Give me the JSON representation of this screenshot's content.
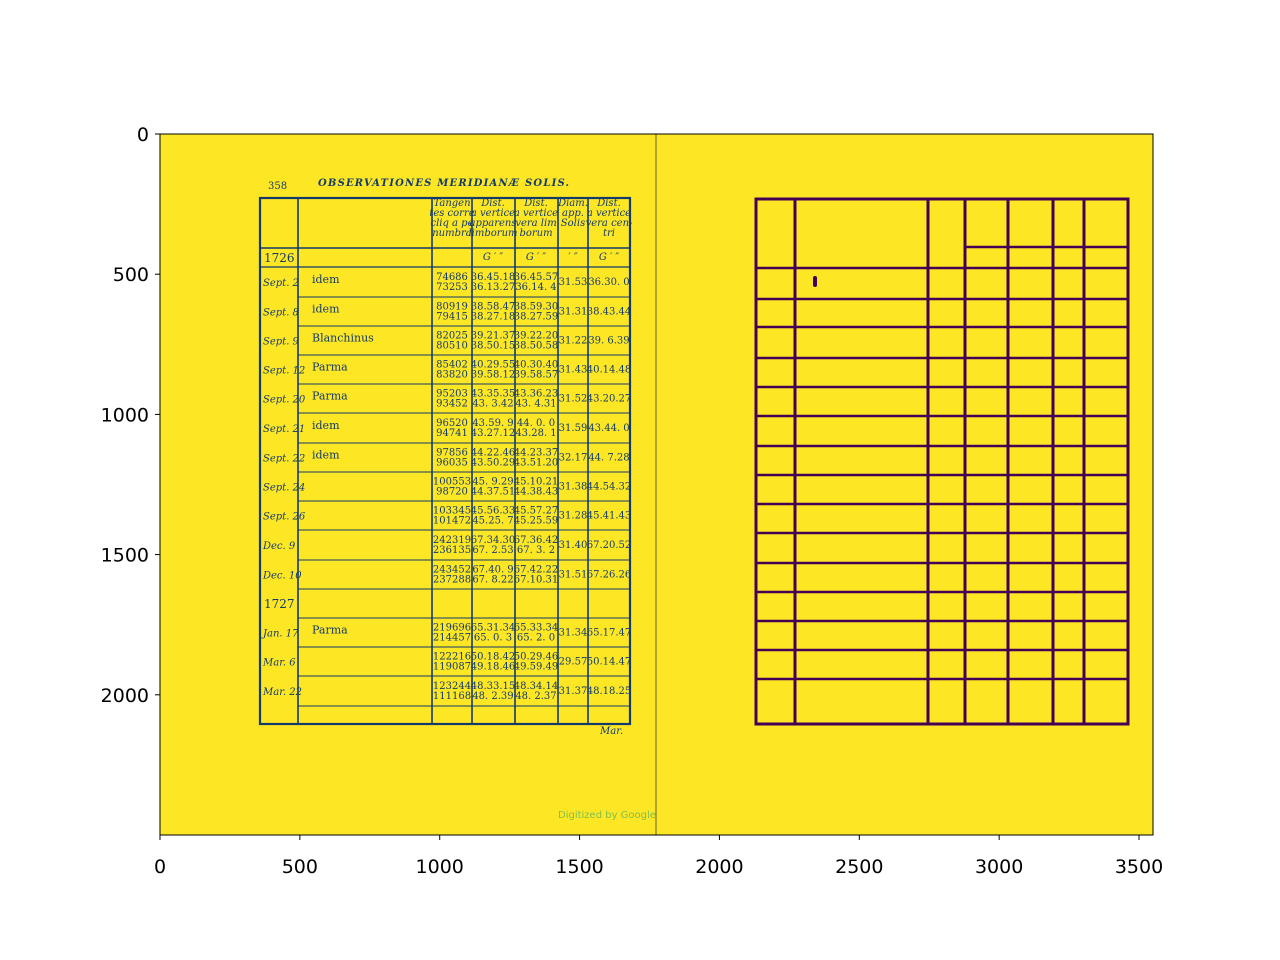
{
  "axes": {
    "x_ticks": [
      "0",
      "500",
      "1000",
      "1500",
      "2000",
      "2500",
      "3000",
      "3500"
    ],
    "y_ticks": [
      "0",
      "500",
      "1000",
      "1500",
      "2000"
    ],
    "x_range": [
      0,
      3550
    ],
    "y_range": [
      2500,
      0
    ]
  },
  "scan": {
    "page_number": "358",
    "heading": "OBSERVATIONES MERIDIANÆ SOLIS.",
    "col_headers": [
      [
        "Tangen",
        "tes corre",
        "cliq a pe",
        "numbra"
      ],
      [
        "Dist.",
        "a vertice",
        "apparens",
        "limborum"
      ],
      [
        "Dist.",
        "a vertice",
        "vera lim",
        "borum"
      ],
      [
        "Diam.",
        "app.",
        "Solis"
      ],
      [
        "Dist.",
        "a vertice",
        "vera cen-",
        "tri"
      ]
    ],
    "unit_row": [
      "G ′ ″",
      "G ′ ″",
      "′ ″",
      "G ′ ″"
    ],
    "year1": "1726",
    "year2": "1727",
    "rows": [
      {
        "date": "Sept. 2",
        "name": "idem",
        "t": [
          "74686",
          "73253"
        ],
        "a": [
          "36.45.18",
          "36.13.27"
        ],
        "v": [
          "36.45.57",
          "36.14. 4"
        ],
        "d": "31.53",
        "c": "36.30. 0"
      },
      {
        "date": "Sept. 8",
        "name": "idem",
        "t": [
          "80919",
          "79415"
        ],
        "a": [
          "38.58.47",
          "38.27.18"
        ],
        "v": [
          "38.59.30",
          "38.27.59"
        ],
        "d": "31.31",
        "c": "38.43.44"
      },
      {
        "date": "Sept. 9",
        "name": "Blanchinus",
        "t": [
          "82025",
          "80510"
        ],
        "a": [
          "39.21.37",
          "38.50.15"
        ],
        "v": [
          "39.22.20",
          "38.50.58"
        ],
        "d": "31.22",
        "c": "39. 6.39"
      },
      {
        "date": "Sept. 12",
        "name": "Parma",
        "t": [
          "85402",
          "83820"
        ],
        "a": [
          "40.29.55",
          "39.58.12"
        ],
        "v": [
          "40.30.40",
          "39.58.57"
        ],
        "d": "31.43",
        "c": "40.14.48"
      },
      {
        "date": "Sept. 20",
        "name": "Parma",
        "t": [
          "95203",
          "93452"
        ],
        "a": [
          "43.35.35",
          "43. 3.42"
        ],
        "v": [
          "43.36.23",
          "43. 4.31"
        ],
        "d": "31.52",
        "c": "43.20.27"
      },
      {
        "date": "Sept. 21",
        "name": "idem",
        "t": [
          "96520",
          "94741"
        ],
        "a": [
          "43.59. 9",
          "43.27.12"
        ],
        "v": [
          "44. 0. 0",
          "43.28. 1"
        ],
        "d": "31.59",
        "c": "43.44. 0"
      },
      {
        "date": "Sept. 22",
        "name": "idem",
        "t": [
          "97856",
          "96035"
        ],
        "a": [
          "44.22.46",
          "43.50.29"
        ],
        "v": [
          "44.23.37",
          "43.51.20"
        ],
        "d": "32.17",
        "c": "44. 7.28"
      },
      {
        "date": "Sept. 24",
        "name": "",
        "t": [
          "100553",
          "98720"
        ],
        "a": [
          "45. 9.29",
          "44.37.51"
        ],
        "v": [
          "45.10.21",
          "44.38.43"
        ],
        "d": "31.38",
        "c": "44.54.32"
      },
      {
        "date": "Sept. 26",
        "name": "",
        "t": [
          "103345",
          "101472"
        ],
        "a": [
          "45.56.33",
          "45.25. 7"
        ],
        "v": [
          "45.57.27",
          "45.25.59"
        ],
        "d": "31.28",
        "c": "45.41.43"
      },
      {
        "date": "Dec. 9",
        "name": "",
        "t": [
          "242319",
          "236135"
        ],
        "a": [
          "67.34.30",
          "67. 2.53"
        ],
        "v": [
          "67.36.42",
          "67. 3. 2"
        ],
        "d": "31.40",
        "c": "67.20.52"
      },
      {
        "date": "Dec. 10",
        "name": "",
        "t": [
          "243452",
          "237288"
        ],
        "a": [
          "67.40. 9",
          "67. 8.22"
        ],
        "v": [
          "67.42.22",
          "67.10.31"
        ],
        "d": "31.51",
        "c": "67.26.26"
      },
      {
        "date": "Jan. 17",
        "name": "Parma",
        "t": [
          "219696",
          "214457"
        ],
        "a": [
          "65.31.34",
          "65. 0. 3"
        ],
        "v": [
          "65.33.34",
          "65. 2. 0"
        ],
        "d": "31.34",
        "c": "65.17.47"
      },
      {
        "date": "Mar. 6",
        "name": "",
        "t": [
          "122216",
          "119087"
        ],
        "a": [
          "50.18.42",
          "49.18.46"
        ],
        "v": [
          "50.29.46",
          "49.59.49"
        ],
        "d": "29.57",
        "c": "50.14.47"
      },
      {
        "date": "Mar. 22",
        "name": "",
        "t": [
          "123244",
          "111168"
        ],
        "a": [
          "48.33.15",
          "48. 2.39"
        ],
        "v": [
          "48.34.14",
          "48. 2.37"
        ],
        "d": "31.37",
        "c": "48.18.25"
      }
    ],
    "catchword": "Mar.",
    "credit": "Digitized by Google"
  },
  "colors": {
    "background": "#fde725",
    "ink": "#123a6b",
    "mask_lines": "#440154"
  }
}
